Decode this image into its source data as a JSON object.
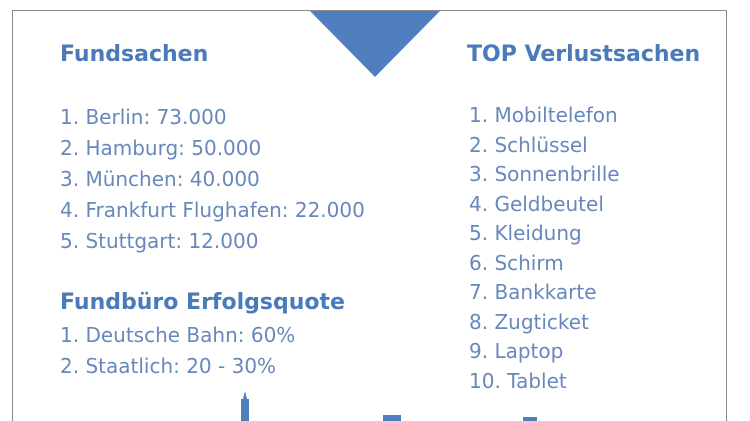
{
  "fundsachen": {
    "heading": "Fundsachen",
    "items": [
      "1. Berlin: 73.000",
      "2. Hamburg: 50.000",
      "3. München: 40.000",
      "4. Frankfurt Flughafen: 22.000",
      "5. Stuttgart: 12.000"
    ]
  },
  "erfolgsquote": {
    "heading": "Fundbüro Erfolgsquote",
    "items": [
      "1. Deutsche Bahn: 60%",
      "2. Staatlich: 20 - 30%"
    ]
  },
  "verlustsachen": {
    "heading": "TOP Verlustsachen",
    "items": [
      "1. Mobiltelefon",
      "2. Schlüssel",
      "3. Sonnenbrille",
      "4. Geldbeutel",
      "5. Kleidung",
      "6. Schirm",
      "7. Bankkarte",
      "8. Zugticket",
      "9. Laptop",
      "10. Tablet"
    ]
  },
  "colors": {
    "heading": "#4a7ab9",
    "text": "#6888bc",
    "accent": "#4f7fbe"
  },
  "icons": [
    "down-triangle-icon",
    "tower-spire-icon",
    "building-icon"
  ]
}
